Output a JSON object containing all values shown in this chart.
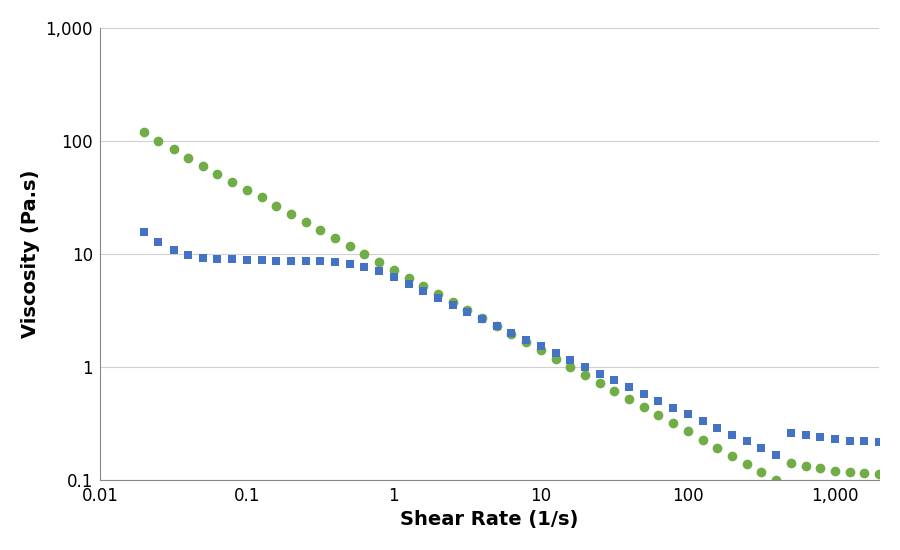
{
  "title": "",
  "xlabel": "Shear Rate (1/s)",
  "ylabel": "Viscosity (Pa.s)",
  "xlim": [
    0.01,
    2000
  ],
  "ylim": [
    0.1,
    1000
  ],
  "background_color": "#ffffff",
  "grid_color": "#d0d0d0",
  "mfc_color": "#70ad47",
  "heur_color": "#4472c4",
  "mfc_marker": "o",
  "heur_marker": "s",
  "marker_size": 7,
  "xlabel_fontsize": 14,
  "ylabel_fontsize": 14,
  "tick_fontsize": 12,
  "mfc_x": [
    0.02,
    0.025,
    0.032,
    0.04,
    0.05,
    0.063,
    0.079,
    0.1,
    0.126,
    0.158,
    0.2,
    0.251,
    0.316,
    0.398,
    0.501,
    0.631,
    0.794,
    1.0,
    1.259,
    1.585,
    1.995,
    2.512,
    3.162,
    3.981,
    5.012,
    6.31,
    7.943,
    10.0,
    12.59,
    15.85,
    19.95,
    25.12,
    31.62,
    39.81,
    50.12,
    63.1,
    79.43,
    100.0,
    125.9,
    158.5,
    199.5,
    251.2,
    316.2,
    398.1,
    501.2,
    631.0,
    794.3,
    1000.0,
    1259.0,
    1585.0,
    2000.0
  ],
  "mfc_y": [
    120.0,
    100.0,
    84.0,
    71.0,
    60.0,
    51.0,
    43.0,
    37.0,
    31.5,
    26.5,
    22.5,
    19.0,
    16.2,
    13.8,
    11.7,
    10.0,
    8.5,
    7.2,
    6.1,
    5.2,
    4.4,
    3.75,
    3.18,
    2.7,
    2.29,
    1.95,
    1.65,
    1.4,
    1.18,
    1.0,
    0.85,
    0.72,
    0.61,
    0.52,
    0.44,
    0.37,
    0.315,
    0.267,
    0.226,
    0.192,
    0.163,
    0.138,
    0.117,
    0.099,
    0.14,
    0.133,
    0.127,
    0.12,
    0.118,
    0.115,
    0.113
  ],
  "heur_x": [
    0.02,
    0.025,
    0.032,
    0.04,
    0.05,
    0.063,
    0.079,
    0.1,
    0.126,
    0.158,
    0.2,
    0.251,
    0.316,
    0.398,
    0.501,
    0.631,
    0.794,
    1.0,
    1.259,
    1.585,
    1.995,
    2.512,
    3.162,
    3.981,
    5.012,
    6.31,
    7.943,
    10.0,
    12.59,
    15.85,
    19.95,
    25.12,
    31.62,
    39.81,
    50.12,
    63.1,
    79.43,
    100.0,
    125.9,
    158.5,
    199.5,
    251.2,
    316.2,
    398.1,
    501.2,
    631.0,
    794.3,
    1000.0,
    1259.0,
    1585.0,
    2000.0
  ],
  "heur_y": [
    15.5,
    12.8,
    10.8,
    9.8,
    9.2,
    9.0,
    8.9,
    8.8,
    8.75,
    8.7,
    8.65,
    8.6,
    8.55,
    8.4,
    8.1,
    7.6,
    7.0,
    6.2,
    5.4,
    4.7,
    4.05,
    3.5,
    3.05,
    2.65,
    2.3,
    2.0,
    1.74,
    1.52,
    1.32,
    1.15,
    1.0,
    0.87,
    0.76,
    0.66,
    0.57,
    0.5,
    0.435,
    0.378,
    0.33,
    0.288,
    0.251,
    0.219,
    0.191,
    0.167,
    0.259,
    0.248,
    0.238,
    0.228,
    0.222,
    0.218,
    0.215
  ]
}
